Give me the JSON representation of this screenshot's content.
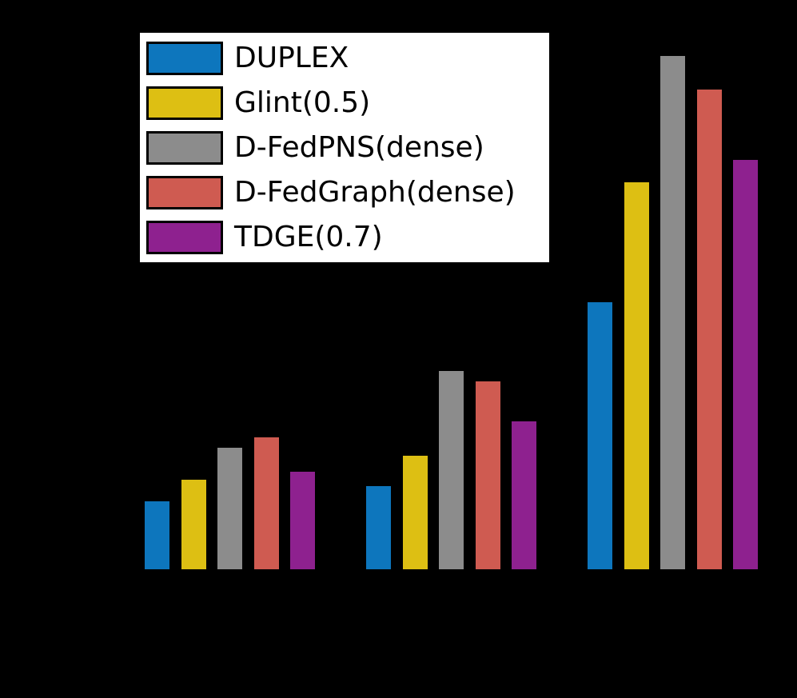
{
  "chart_data": {
    "type": "bar",
    "categories": [
      "",
      "",
      ""
    ],
    "series": [
      {
        "name": "DUPLEX",
        "color": "#0d76bd",
        "values": [
          13.2,
          16.2,
          52.0
        ]
      },
      {
        "name": "Glint(0.5)",
        "color": "#ddbf13",
        "values": [
          17.4,
          22.1,
          75.4
        ]
      },
      {
        "name": "D-FedPNS(dense)",
        "color": "#8c8c8c",
        "values": [
          23.7,
          38.6,
          100.0
        ]
      },
      {
        "name": "D-FedGraph(dense)",
        "color": "#cf5b51",
        "values": [
          25.7,
          36.6,
          93.5
        ]
      },
      {
        "name": "TDGE(0.7)",
        "color": "#8e218f",
        "values": [
          19.0,
          28.8,
          79.8
        ]
      }
    ],
    "title": "",
    "xlabel": "",
    "ylabel": "",
    "ylim": [
      0,
      110
    ],
    "value_units": "relative (axis tick labels not visible in image)",
    "grid": false,
    "legend_position": "upper left",
    "background_color": "#000000",
    "legend_background_color": "#ffffff",
    "legend_border_color": "#000000"
  }
}
